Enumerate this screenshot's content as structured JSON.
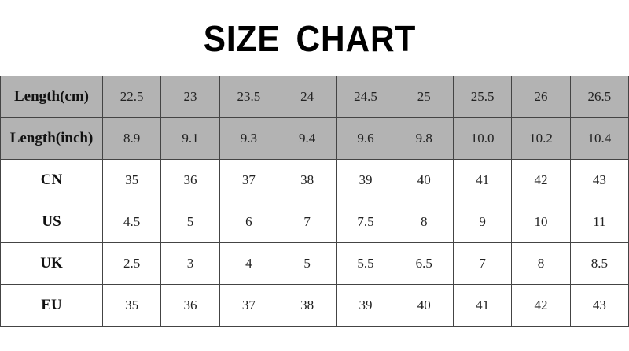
{
  "title": "SIZE  CHART",
  "rows": [
    {
      "label": "Length(cm)",
      "values": [
        "22.5",
        "23",
        "23.5",
        "24",
        "24.5",
        "25",
        "25.5",
        "26",
        "26.5"
      ],
      "shaded": true
    },
    {
      "label": "Length(inch)",
      "values": [
        "8.9",
        "9.1",
        "9.3",
        "9.4",
        "9.6",
        "9.8",
        "10.0",
        "10.2",
        "10.4"
      ],
      "shaded": true
    },
    {
      "label": "CN",
      "values": [
        "35",
        "36",
        "37",
        "38",
        "39",
        "40",
        "41",
        "42",
        "43"
      ],
      "shaded": false
    },
    {
      "label": "US",
      "values": [
        "4.5",
        "5",
        "6",
        "7",
        "7.5",
        "8",
        "9",
        "10",
        "11"
      ],
      "shaded": false
    },
    {
      "label": "UK",
      "values": [
        "2.5",
        "3",
        "4",
        "5",
        "5.5",
        "6.5",
        "7",
        "8",
        "8.5"
      ],
      "shaded": false
    },
    {
      "label": "EU",
      "values": [
        "35",
        "36",
        "37",
        "38",
        "39",
        "40",
        "41",
        "42",
        "43"
      ],
      "shaded": false
    }
  ],
  "colors": {
    "header_fill": "#b3b3b3",
    "border": "#444444"
  }
}
